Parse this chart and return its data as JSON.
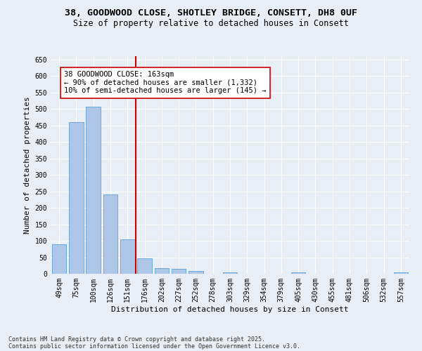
{
  "title1": "38, GOODWOOD CLOSE, SHOTLEY BRIDGE, CONSETT, DH8 0UF",
  "title2": "Size of property relative to detached houses in Consett",
  "xlabel": "Distribution of detached houses by size in Consett",
  "ylabel": "Number of detached properties",
  "categories": [
    "49sqm",
    "75sqm",
    "100sqm",
    "126sqm",
    "151sqm",
    "176sqm",
    "202sqm",
    "227sqm",
    "252sqm",
    "278sqm",
    "303sqm",
    "329sqm",
    "354sqm",
    "379sqm",
    "405sqm",
    "430sqm",
    "455sqm",
    "481sqm",
    "506sqm",
    "532sqm",
    "557sqm"
  ],
  "values": [
    90,
    460,
    507,
    241,
    104,
    47,
    18,
    14,
    9,
    0,
    5,
    0,
    0,
    0,
    4,
    0,
    0,
    1,
    0,
    0,
    4
  ],
  "bar_color": "#aec6e8",
  "bar_edge_color": "#5a9fd4",
  "vline_x_idx": 4,
  "vline_color": "#cc0000",
  "annotation_text": "38 GOODWOOD CLOSE: 163sqm\n← 90% of detached houses are smaller (1,332)\n10% of semi-detached houses are larger (145) →",
  "annotation_box_color": "#ffffff",
  "annotation_box_edge": "#cc0000",
  "ylim": [
    0,
    660
  ],
  "yticks": [
    0,
    50,
    100,
    150,
    200,
    250,
    300,
    350,
    400,
    450,
    500,
    550,
    600,
    650
  ],
  "footnote1": "Contains HM Land Registry data © Crown copyright and database right 2025.",
  "footnote2": "Contains public sector information licensed under the Open Government Licence v3.0.",
  "bg_color": "#e8eef5",
  "grid_color": "#ffffff",
  "title_fontsize": 9.5,
  "subtitle_fontsize": 8.5,
  "axis_label_fontsize": 8,
  "tick_fontsize": 7,
  "annotation_fontsize": 7.5,
  "footnote_fontsize": 6
}
